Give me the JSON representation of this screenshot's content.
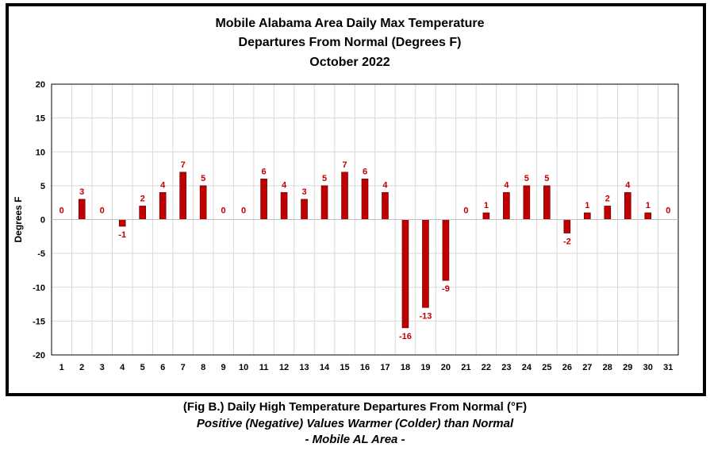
{
  "chart_data": {
    "type": "bar",
    "title_lines": [
      "Mobile Alabama Area Daily Max Temperature",
      "Departures From Normal (Degrees F)",
      "October 2022"
    ],
    "xlabel": "",
    "ylabel": "Degrees F",
    "ylim": [
      -20,
      20
    ],
    "yticks": [
      -20,
      -15,
      -10,
      -5,
      0,
      5,
      10,
      15,
      20
    ],
    "grid": true,
    "legend": "none",
    "categories": [
      "1",
      "2",
      "3",
      "4",
      "5",
      "6",
      "7",
      "8",
      "9",
      "10",
      "11",
      "12",
      "13",
      "14",
      "15",
      "16",
      "17",
      "18",
      "19",
      "20",
      "21",
      "22",
      "23",
      "24",
      "25",
      "26",
      "27",
      "28",
      "29",
      "30",
      "31"
    ],
    "values": [
      0,
      3,
      0,
      -1,
      2,
      4,
      7,
      5,
      0,
      0,
      6,
      4,
      3,
      5,
      7,
      6,
      4,
      -16,
      -13,
      -9,
      0,
      1,
      4,
      5,
      5,
      -2,
      1,
      2,
      4,
      1,
      0
    ],
    "colors": {
      "bar": "#c00000",
      "bar_edge": "#5a0000",
      "label": "#c00000",
      "grid": "#d9d9d9"
    }
  },
  "caption": {
    "line1": "(Fig B.) Daily High Temperature Departures From Normal (°F)",
    "line2": "Positive (Negative) Values Warmer (Colder) than Normal",
    "line3": "- Mobile AL Area -"
  }
}
